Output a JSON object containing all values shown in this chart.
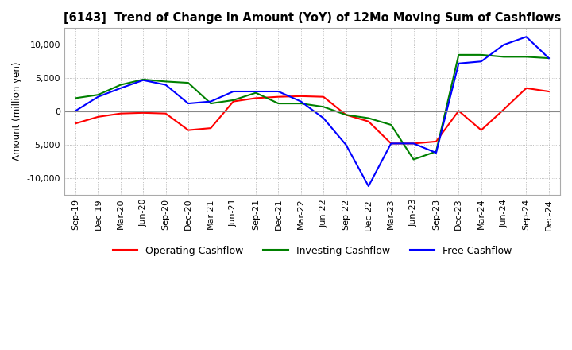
{
  "title": "[6143]  Trend of Change in Amount (YoY) of 12Mo Moving Sum of Cashflows",
  "ylabel": "Amount (million yen)",
  "ylim": [
    -12500,
    12500
  ],
  "yticks": [
    -10000,
    -5000,
    0,
    5000,
    10000
  ],
  "background_color": "#ffffff",
  "grid_color": "#aaaaaa",
  "labels": [
    "Sep-19",
    "Dec-19",
    "Mar-20",
    "Jun-20",
    "Sep-20",
    "Dec-20",
    "Mar-21",
    "Jun-21",
    "Sep-21",
    "Dec-21",
    "Mar-22",
    "Jun-22",
    "Sep-22",
    "Dec-22",
    "Mar-23",
    "Jun-23",
    "Sep-23",
    "Dec-23",
    "Mar-24",
    "Jun-24",
    "Sep-24",
    "Dec-24"
  ],
  "operating": [
    -1800,
    -800,
    -300,
    -200,
    -300,
    -2800,
    -2500,
    1500,
    2000,
    2200,
    2300,
    2200,
    -500,
    -1500,
    -4800,
    -4800,
    -4500,
    100,
    -2800,
    300,
    3500,
    3000
  ],
  "investing": [
    2000,
    2500,
    4000,
    4800,
    4500,
    4300,
    1200,
    1700,
    2800,
    1200,
    1200,
    700,
    -500,
    -1000,
    -2000,
    -7200,
    -6000,
    8500,
    8500,
    8200,
    8200,
    8000
  ],
  "free": [
    100,
    2200,
    3500,
    4700,
    4000,
    1200,
    1500,
    3000,
    3000,
    3000,
    1500,
    -1000,
    -5000,
    -11200,
    -4800,
    -4800,
    -6200,
    7200,
    7500,
    10000,
    11200,
    8000
  ],
  "operating_color": "#ff0000",
  "investing_color": "#008000",
  "free_color": "#0000ff",
  "line_width": 1.5
}
